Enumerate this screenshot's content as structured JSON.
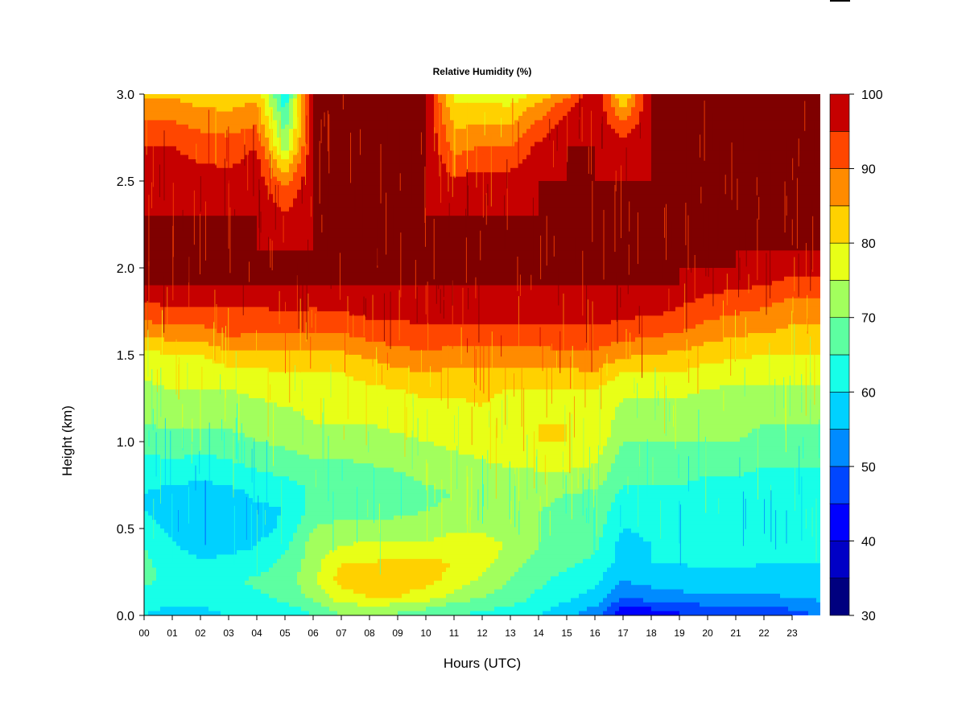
{
  "chart_data": {
    "type": "heatmap",
    "title": "Relative Humidity (%)",
    "xlabel": "Hours (UTC)",
    "ylabel": "Height (km)",
    "x_ticks": [
      "00",
      "01",
      "02",
      "03",
      "04",
      "05",
      "06",
      "07",
      "08",
      "09",
      "10",
      "11",
      "12",
      "13",
      "14",
      "15",
      "16",
      "17",
      "18",
      "19",
      "20",
      "21",
      "22",
      "23"
    ],
    "x_range": [
      0,
      24
    ],
    "y_ticks": [
      "0.0",
      "0.5",
      "1.0",
      "1.5",
      "2.0",
      "2.5",
      "3.0"
    ],
    "y_range": [
      0,
      3
    ],
    "colorbar": {
      "levels": [
        30,
        35,
        40,
        45,
        50,
        55,
        60,
        65,
        70,
        75,
        80,
        85,
        90,
        95,
        100
      ],
      "labels": [
        "30",
        "40",
        "50",
        "60",
        "70",
        "80",
        "90",
        "100"
      ],
      "colors": [
        "#00007f",
        "#0000c6",
        "#0000ff",
        "#0046ff",
        "#008bff",
        "#00d1ff",
        "#17ffe8",
        "#5dffa1",
        "#a2ff5d",
        "#e8ff17",
        "#ffd100",
        "#ff8b00",
        "#ff4600",
        "#c60000",
        "#7f0000"
      ]
    },
    "profile_heights_km": [
      0.0,
      0.05,
      0.1,
      0.2,
      0.3,
      0.4,
      0.5,
      0.6,
      0.7,
      0.8,
      0.9,
      1.0,
      1.1,
      1.2,
      1.3,
      1.4,
      1.5,
      1.6,
      1.7,
      1.8,
      1.9,
      2.0,
      2.1,
      2.3,
      2.5,
      2.7,
      2.9,
      3.0
    ],
    "profile_hours_utc": [
      0,
      1,
      2,
      3,
      4,
      5,
      6,
      7,
      8,
      9,
      10,
      11,
      12,
      13,
      14,
      15,
      16,
      17,
      18,
      19,
      20,
      21,
      22,
      23,
      24
    ],
    "values": [
      [
        60,
        61,
        63,
        66,
        66,
        65,
        63,
        60,
        60,
        62,
        64,
        67,
        70,
        72,
        74,
        76,
        78,
        85,
        90,
        95,
        100,
        100,
        100,
        100,
        98,
        95,
        88,
        84
      ],
      [
        58,
        60,
        62,
        64,
        63,
        61,
        58,
        57,
        58,
        62,
        65,
        68,
        71,
        73,
        75,
        77,
        80,
        86,
        92,
        96,
        100,
        100,
        100,
        100,
        98,
        95,
        88,
        84
      ],
      [
        58,
        60,
        62,
        63,
        61,
        57,
        55,
        55,
        57,
        61,
        64,
        68,
        71,
        73,
        75,
        77,
        80,
        86,
        92,
        96,
        100,
        100,
        100,
        100,
        97,
        93,
        86,
        82
      ],
      [
        60,
        62,
        63,
        64,
        62,
        58,
        56,
        56,
        58,
        62,
        65,
        68,
        71,
        73,
        75,
        78,
        84,
        90,
        93,
        96,
        100,
        100,
        100,
        100,
        97,
        92,
        85,
        82
      ],
      [
        60,
        62,
        64,
        66,
        63,
        60,
        58,
        59,
        61,
        64,
        67,
        70,
        72,
        74,
        76,
        79,
        84,
        89,
        92,
        96,
        100,
        100,
        100,
        100,
        98,
        95,
        87,
        84
      ],
      [
        62,
        64,
        66,
        67,
        66,
        64,
        61,
        60,
        61,
        65,
        68,
        71,
        73,
        75,
        77,
        80,
        84,
        89,
        93,
        97,
        100,
        100,
        100,
        96,
        88,
        72,
        65,
        60
      ],
      [
        65,
        67,
        71,
        74,
        73,
        72,
        70,
        67,
        66,
        67,
        70,
        73,
        75,
        76,
        78,
        80,
        84,
        89,
        93,
        96,
        100,
        100,
        100,
        100,
        100,
        100,
        100,
        100
      ],
      [
        70,
        73,
        78,
        82,
        80,
        75,
        72,
        68,
        66,
        67,
        70,
        73,
        75,
        76,
        78,
        80,
        84,
        89,
        93,
        97,
        100,
        100,
        100,
        100,
        100,
        100,
        100,
        100
      ],
      [
        70,
        74,
        80,
        82,
        80,
        76,
        72,
        68,
        66,
        68,
        71,
        73,
        75,
        77,
        79,
        82,
        86,
        91,
        95,
        98,
        100,
        100,
        100,
        100,
        100,
        100,
        100,
        100
      ],
      [
        69,
        73,
        80,
        83,
        82,
        76,
        72,
        69,
        67,
        69,
        72,
        74,
        76,
        78,
        80,
        84,
        88,
        92,
        95,
        98,
        100,
        100,
        100,
        100,
        100,
        100,
        100,
        100
      ],
      [
        67,
        71,
        77,
        82,
        81,
        76,
        72,
        70,
        69,
        71,
        73,
        75,
        77,
        79,
        81,
        85,
        89,
        93,
        96,
        98,
        100,
        100,
        100,
        100,
        100,
        100,
        100,
        100
      ],
      [
        65,
        68,
        73,
        78,
        80,
        78,
        74,
        71,
        70,
        72,
        74,
        76,
        78,
        79,
        81,
        84,
        88,
        92,
        96,
        98,
        100,
        100,
        100,
        100,
        96,
        88,
        82,
        78
      ],
      [
        64,
        66,
        70,
        74,
        77,
        78,
        74,
        71,
        70,
        72,
        75,
        78,
        80,
        80,
        81,
        84,
        88,
        92,
        96,
        98,
        100,
        100,
        100,
        100,
        97,
        90,
        82,
        78
      ],
      [
        63,
        65,
        67,
        70,
        72,
        74,
        72,
        70,
        70,
        73,
        77,
        80,
        79,
        78,
        80,
        84,
        88,
        92,
        96,
        98,
        100,
        100,
        100,
        100,
        97,
        90,
        82,
        76
      ],
      [
        60,
        62,
        64,
        66,
        68,
        70,
        70,
        70,
        71,
        74,
        77,
        80,
        80,
        78,
        80,
        84,
        88,
        92,
        96,
        98,
        100,
        100,
        100,
        100,
        100,
        96,
        88,
        82
      ],
      [
        56,
        58,
        61,
        63,
        66,
        68,
        69,
        69,
        70,
        74,
        77,
        80,
        80,
        78,
        80,
        84,
        89,
        93,
        96,
        98,
        100,
        100,
        100,
        100,
        100,
        100,
        95,
        88
      ],
      [
        52,
        55,
        58,
        61,
        64,
        66,
        67,
        68,
        69,
        73,
        76,
        79,
        80,
        78,
        80,
        85,
        89,
        93,
        96,
        98,
        100,
        100,
        100,
        100,
        100,
        100,
        100,
        100
      ],
      [
        40,
        44,
        50,
        55,
        58,
        58,
        60,
        62,
        64,
        66,
        68,
        70,
        72,
        74,
        76,
        80,
        86,
        91,
        95,
        98,
        100,
        100,
        100,
        100,
        100,
        98,
        86,
        80
      ],
      [
        42,
        46,
        52,
        57,
        60,
        60,
        61,
        62,
        64,
        66,
        68,
        70,
        72,
        74,
        76,
        80,
        85,
        90,
        94,
        98,
        100,
        100,
        100,
        100,
        100,
        100,
        100,
        100
      ],
      [
        44,
        48,
        53,
        58,
        60,
        60,
        61,
        62,
        64,
        66,
        68,
        70,
        72,
        74,
        76,
        80,
        84,
        89,
        93,
        96,
        100,
        100,
        100,
        100,
        100,
        100,
        100,
        100
      ],
      [
        45,
        49,
        54,
        58,
        61,
        61,
        62,
        62,
        63,
        65,
        67,
        70,
        72,
        73,
        75,
        78,
        82,
        86,
        90,
        93,
        97,
        100,
        100,
        100,
        100,
        100,
        100,
        100
      ],
      [
        45,
        49,
        54,
        58,
        61,
        61,
        61,
        61,
        63,
        65,
        67,
        70,
        71,
        72,
        74,
        77,
        81,
        85,
        89,
        92,
        96,
        100,
        100,
        100,
        100,
        100,
        100,
        100
      ],
      [
        46,
        50,
        54,
        58,
        60,
        60,
        60,
        61,
        62,
        64,
        66,
        69,
        70,
        72,
        74,
        77,
        80,
        84,
        88,
        91,
        95,
        99,
        100,
        100,
        100,
        100,
        100,
        100
      ],
      [
        48,
        51,
        55,
        58,
        60,
        60,
        61,
        61,
        62,
        64,
        66,
        69,
        70,
        72,
        74,
        77,
        80,
        83,
        86,
        89,
        93,
        97,
        100,
        100,
        100,
        100,
        100,
        100
      ],
      [
        50,
        53,
        56,
        58,
        60,
        60,
        61,
        61,
        62,
        64,
        66,
        69,
        70,
        72,
        74,
        77,
        80,
        83,
        86,
        89,
        93,
        97,
        100,
        100,
        100,
        100,
        100,
        100
      ]
    ]
  }
}
